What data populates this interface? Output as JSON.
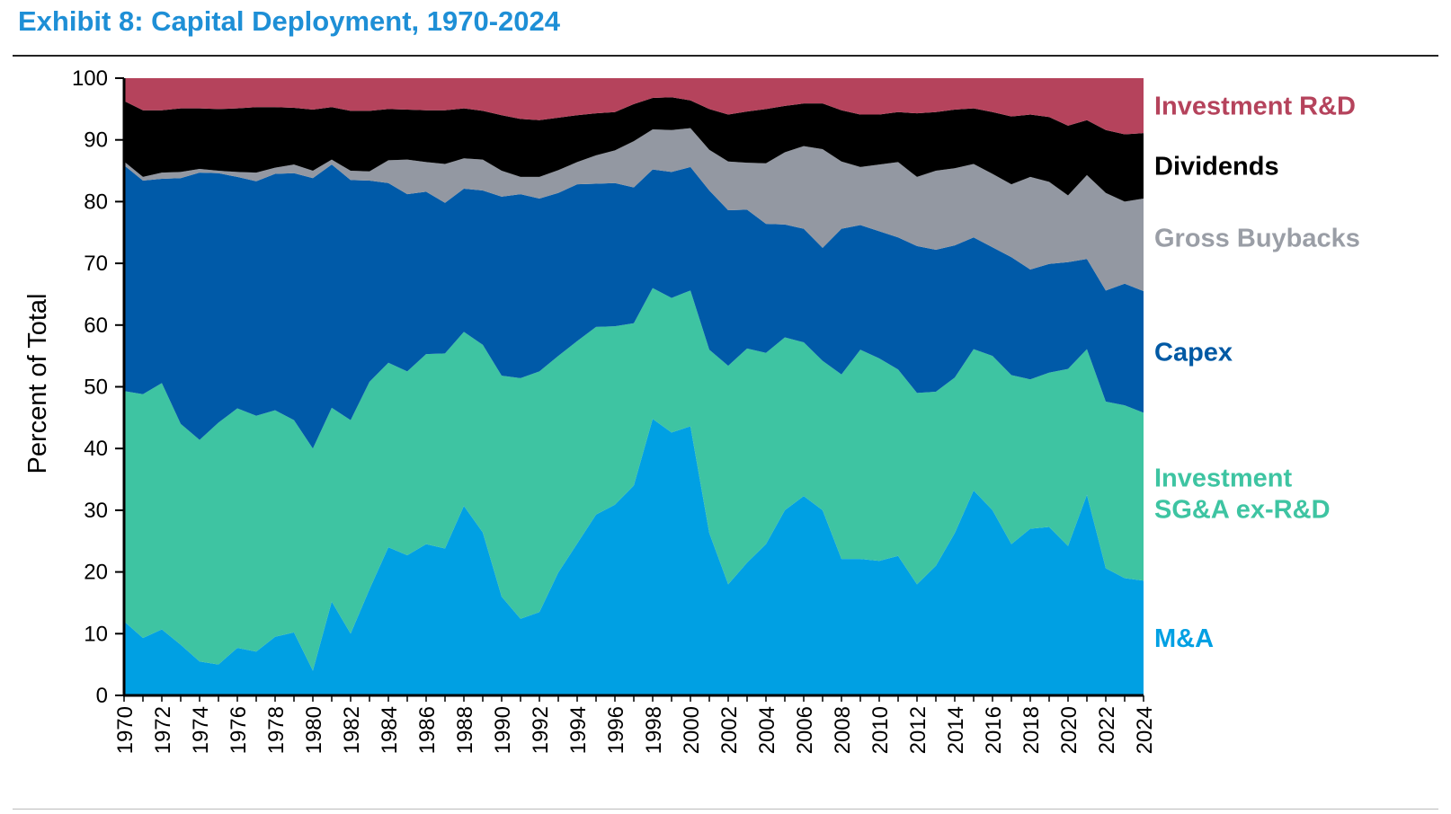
{
  "title": "Exhibit 8: Capital Deployment, 1970-2024",
  "chart_data": {
    "type": "area",
    "stacked": true,
    "title": "Exhibit 8: Capital Deployment, 1970-2024",
    "xlabel": "",
    "ylabel": "Percent of Total",
    "ylim": [
      0,
      100
    ],
    "yticks": [
      0,
      10,
      20,
      30,
      40,
      50,
      60,
      70,
      80,
      90,
      100
    ],
    "x": [
      1970,
      1971,
      1972,
      1973,
      1974,
      1975,
      1976,
      1977,
      1978,
      1979,
      1980,
      1981,
      1982,
      1983,
      1984,
      1985,
      1986,
      1987,
      1988,
      1989,
      1990,
      1991,
      1992,
      1993,
      1994,
      1995,
      1996,
      1997,
      1998,
      1999,
      2000,
      2001,
      2002,
      2003,
      2004,
      2005,
      2006,
      2007,
      2008,
      2009,
      2010,
      2011,
      2012,
      2013,
      2014,
      2015,
      2016,
      2017,
      2018,
      2019,
      2020,
      2021,
      2022,
      2023,
      2024
    ],
    "xticks": [
      1970,
      1972,
      1974,
      1976,
      1978,
      1980,
      1982,
      1984,
      1986,
      1988,
      1990,
      1992,
      1994,
      1996,
      1998,
      2000,
      2002,
      2004,
      2006,
      2008,
      2010,
      2012,
      2014,
      2016,
      2018,
      2020,
      2022,
      2024
    ],
    "legend_position": "right",
    "series": [
      {
        "name": "M&A",
        "label_lines": [
          "M&A"
        ],
        "color": "#00a0e3",
        "label_color": "#00a0e3",
        "cumulative": [
          12,
          9.3,
          10.7,
          8.2,
          5.5,
          5,
          7.7,
          7.1,
          9.5,
          10.2,
          4,
          15.2,
          10,
          17.2,
          24,
          22.7,
          24.5,
          23.8,
          30.7,
          26.4,
          16,
          12.4,
          13.5,
          19.9,
          24.6,
          29.3,
          30.9,
          34,
          44.8,
          42.6,
          43.6,
          26.3,
          18,
          21.5,
          24.5,
          30,
          32.3,
          30,
          22.1,
          22.1,
          21.8,
          22.6,
          18,
          21,
          26.3,
          33.2,
          30,
          24.5,
          27,
          27.3,
          24.2,
          32.5,
          20.6,
          19,
          18.6
        ]
      },
      {
        "name": "Investment SG&A ex-R&D",
        "label_lines": [
          "Investment",
          "SG&A ex-R&D"
        ],
        "color": "#3ec4a2",
        "label_color": "#3ec4a2",
        "cumulative": [
          49.3,
          48.8,
          50.6,
          44,
          41.4,
          44.2,
          46.5,
          45.3,
          46.2,
          44.6,
          40,
          46.6,
          44.6,
          50.8,
          53.9,
          52.5,
          55.3,
          55.4,
          58.9,
          56.8,
          51.8,
          51.4,
          52.5,
          55,
          57.4,
          59.7,
          59.8,
          60.3,
          66,
          64.4,
          65.6,
          56,
          53.4,
          56.2,
          55.5,
          58,
          57.2,
          54.2,
          52,
          56,
          54.6,
          52.8,
          49,
          49.2,
          51.5,
          56.1,
          55,
          51.9,
          51.2,
          52.3,
          52.9,
          56.1,
          47.6,
          47,
          45.8
        ]
      },
      {
        "name": "Capex",
        "label_lines": [
          "Capex"
        ],
        "color": "#005aa8",
        "label_color": "#0059a4",
        "cumulative": [
          85.9,
          83.4,
          83.7,
          83.8,
          84.7,
          84.6,
          84,
          83.3,
          84.5,
          84.6,
          83.8,
          86,
          83.5,
          83.4,
          83,
          81.2,
          81.6,
          79.8,
          82.1,
          81.8,
          80.8,
          81.2,
          80.5,
          81.4,
          82.8,
          82.9,
          83,
          82.3,
          85.2,
          84.8,
          85.6,
          81.8,
          78.6,
          78.7,
          76.4,
          76.3,
          75.6,
          72.5,
          75.6,
          76.2,
          75.2,
          74.2,
          72.8,
          72.2,
          72.9,
          74.2,
          72.6,
          71,
          69,
          69.9,
          70.2,
          70.7,
          65.6,
          66.7,
          65.5
        ]
      },
      {
        "name": "Gross Buybacks",
        "label_lines": [
          "Gross Buybacks"
        ],
        "color": "#9398a2",
        "label_color": "#9a9ea6",
        "cumulative": [
          86.5,
          84,
          84.7,
          84.8,
          85.3,
          85,
          84.8,
          84.7,
          85.5,
          86,
          85,
          86.8,
          85,
          84.9,
          86.7,
          86.8,
          86.4,
          86.1,
          87,
          86.8,
          85,
          84,
          84,
          85.1,
          86.4,
          87.5,
          88.3,
          89.8,
          91.7,
          91.6,
          91.9,
          88.4,
          86.5,
          86.3,
          86.2,
          88,
          89,
          88.5,
          86.5,
          85.6,
          86,
          86.4,
          84,
          85,
          85.4,
          86.1,
          84.5,
          82.8,
          84,
          83.2,
          81,
          84.3,
          81.4,
          80,
          80.5
        ]
      },
      {
        "name": "Dividends",
        "label_lines": [
          "Dividends"
        ],
        "color": "#000000",
        "label_color": "#000000",
        "cumulative": [
          96.3,
          94.8,
          94.8,
          95.1,
          95.1,
          95,
          95.1,
          95.3,
          95.3,
          95.2,
          94.9,
          95.3,
          94.7,
          94.7,
          95,
          94.9,
          94.8,
          94.8,
          95.1,
          94.7,
          94,
          93.4,
          93.2,
          93.6,
          94,
          94.3,
          94.5,
          95.8,
          96.8,
          96.9,
          96.4,
          95,
          94.1,
          94.6,
          95,
          95.5,
          95.9,
          95.9,
          94.8,
          94.1,
          94.1,
          94.5,
          94.3,
          94.5,
          94.9,
          95.1,
          94.5,
          93.8,
          94.1,
          93.7,
          92.3,
          93.2,
          91.6,
          90.9,
          91.1
        ]
      },
      {
        "name": "Investment R&D",
        "label_lines": [
          "Investment R&D"
        ],
        "color": "#b5435c",
        "label_color": "#b5435c",
        "cumulative": [
          100,
          100,
          100,
          100,
          100,
          100,
          100,
          100,
          100,
          100,
          100,
          100,
          100,
          100,
          100,
          100,
          100,
          100,
          100,
          100,
          100,
          100,
          100,
          100,
          100,
          100,
          100,
          100,
          100,
          100,
          100,
          100,
          100,
          100,
          100,
          100,
          100,
          100,
          100,
          100,
          100,
          100,
          100,
          100,
          100,
          100,
          100,
          100,
          100,
          100,
          100,
          100,
          100,
          100,
          100
        ]
      }
    ]
  }
}
